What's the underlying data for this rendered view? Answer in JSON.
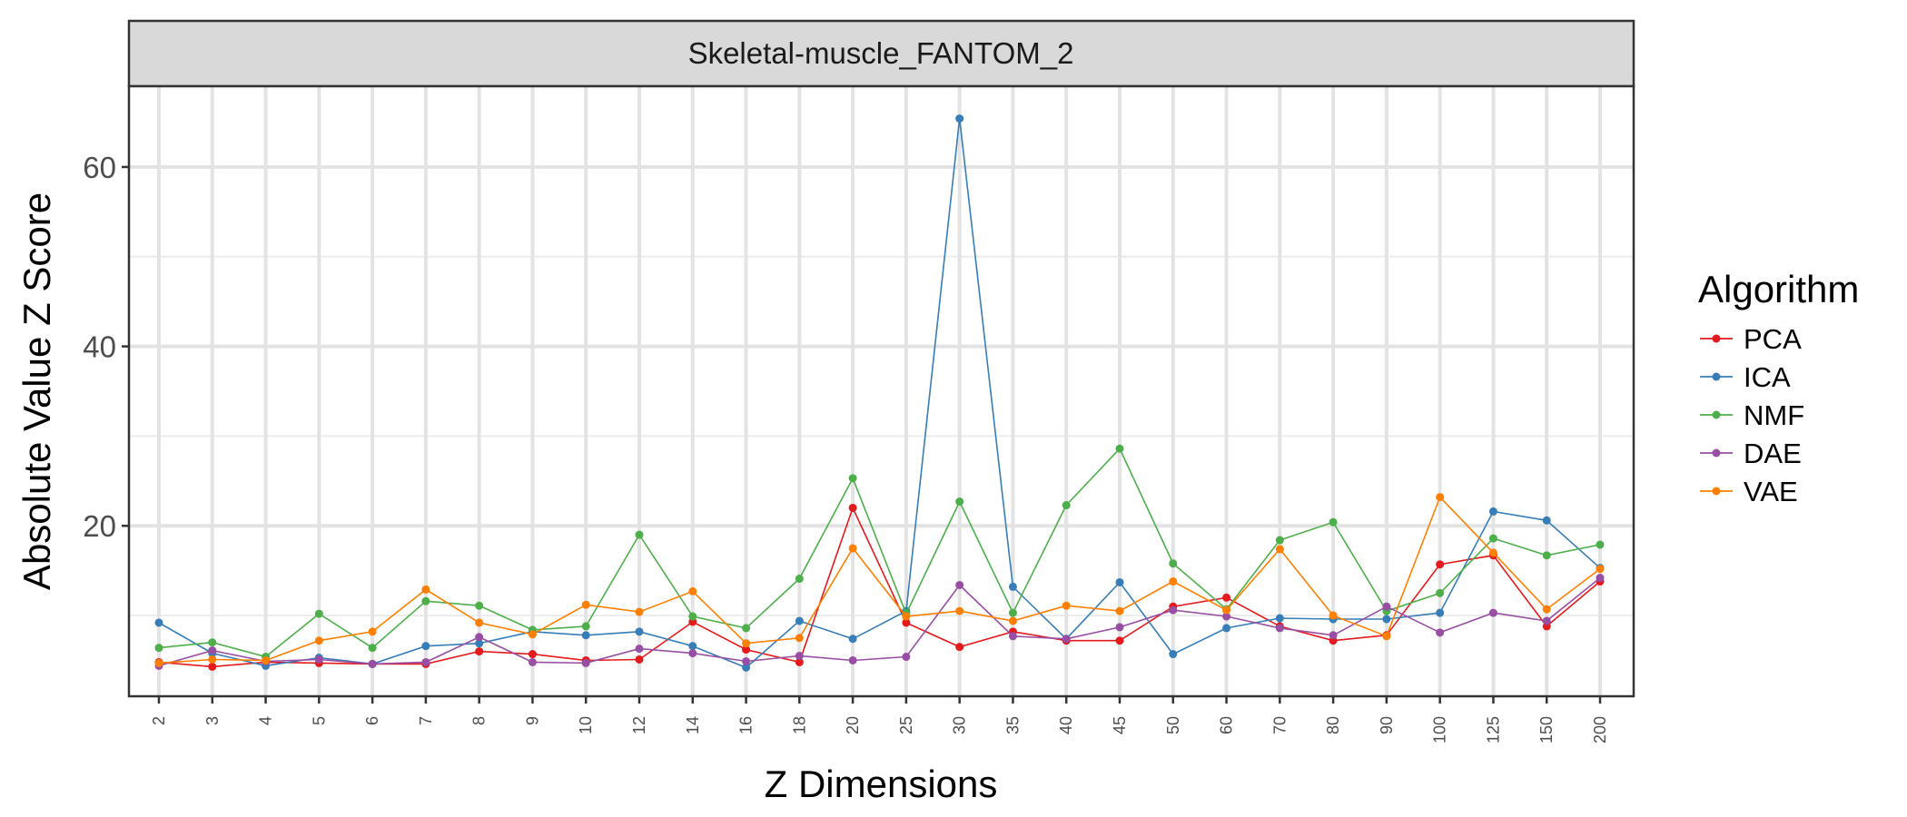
{
  "chart_data": {
    "type": "line",
    "facet_title": "Skeletal-muscle_FANTOM_2",
    "xlabel": "Z Dimensions",
    "ylabel": "Absolute Value Z Score",
    "categories": [
      "2",
      "3",
      "4",
      "5",
      "6",
      "7",
      "8",
      "9",
      "10",
      "12",
      "14",
      "16",
      "18",
      "20",
      "25",
      "30",
      "35",
      "40",
      "45",
      "50",
      "60",
      "70",
      "80",
      "90",
      "100",
      "125",
      "150",
      "200"
    ],
    "ylim": [
      1,
      69
    ],
    "y_ticks": [
      20,
      40,
      60
    ],
    "grid": true,
    "legend": {
      "title": "Algorithm",
      "position": "right"
    },
    "series": [
      {
        "name": "PCA",
        "color": "#e41a1c",
        "values": [
          4.8,
          4.3,
          4.8,
          4.7,
          4.6,
          4.6,
          6.0,
          5.7,
          5.0,
          5.1,
          9.3,
          6.2,
          4.8,
          22.0,
          9.2,
          6.5,
          8.2,
          7.2,
          7.2,
          11.0,
          12.0,
          8.8,
          7.2,
          7.8,
          15.7,
          16.7,
          8.8,
          13.8
        ]
      },
      {
        "name": "ICA",
        "color": "#377eb8",
        "values": [
          9.2,
          5.8,
          4.4,
          5.3,
          4.6,
          6.6,
          6.9,
          8.2,
          7.8,
          8.2,
          6.6,
          4.2,
          9.4,
          7.4,
          10.5,
          65.4,
          13.2,
          7.4,
          13.7,
          5.7,
          8.6,
          9.7,
          9.6,
          9.6,
          10.3,
          21.6,
          20.6,
          15.3
        ]
      },
      {
        "name": "NMF",
        "color": "#4daf4a",
        "values": [
          6.4,
          7.0,
          5.4,
          10.2,
          6.4,
          11.6,
          11.1,
          8.4,
          8.8,
          19.0,
          9.9,
          8.6,
          14.1,
          25.3,
          10.2,
          22.7,
          10.3,
          22.3,
          28.6,
          15.8,
          10.7,
          18.4,
          20.4,
          10.5,
          12.5,
          18.6,
          16.7,
          17.9
        ]
      },
      {
        "name": "DAE",
        "color": "#984ea3",
        "values": [
          4.4,
          6.1,
          4.9,
          5.1,
          4.6,
          4.8,
          7.6,
          4.8,
          4.7,
          6.3,
          5.8,
          4.9,
          5.5,
          5.0,
          5.4,
          13.4,
          7.7,
          7.4,
          8.7,
          10.6,
          9.9,
          8.6,
          7.8,
          11.0,
          8.1,
          10.3,
          9.4,
          14.2
        ]
      },
      {
        "name": "VAE",
        "color": "#ff7f00",
        "values": [
          4.7,
          5.1,
          5.0,
          7.2,
          8.2,
          12.9,
          9.2,
          7.9,
          11.2,
          10.4,
          12.7,
          6.9,
          7.5,
          17.5,
          9.9,
          10.5,
          9.4,
          11.1,
          10.5,
          13.8,
          10.6,
          17.4,
          10.0,
          7.7,
          23.2,
          17.0,
          10.7,
          15.2
        ]
      }
    ]
  }
}
